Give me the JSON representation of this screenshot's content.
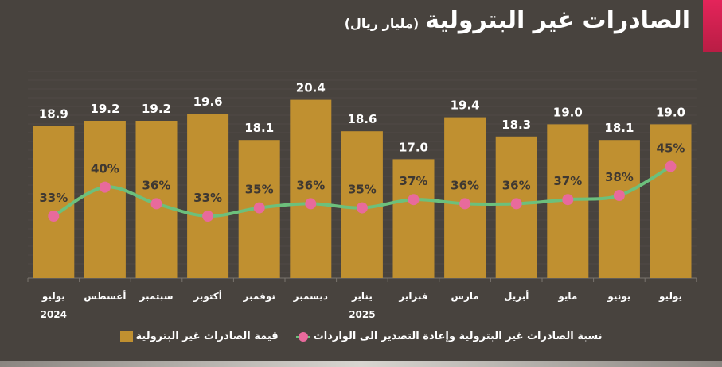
{
  "header": {
    "title": "الصادرات غير البترولية",
    "unit": "(مليار ريال)"
  },
  "colors": {
    "bar": "#c09030",
    "line": "#6cc07c",
    "marker": "#e86a9c",
    "accent": "#e4245a"
  },
  "chart_data": {
    "type": "bar+line",
    "title": "الصادرات غير البترولية (مليار ريال)",
    "categories": [
      "يوليو",
      "أغسطس",
      "سبتمبر",
      "أكتوبر",
      "نوفمبر",
      "ديسمبر",
      "يناير",
      "فبراير",
      "مارس",
      "أبريل",
      "مايو",
      "يونيو",
      "يوليو"
    ],
    "year_labels": [
      {
        "index": 0,
        "label": "2024"
      },
      {
        "index": 6,
        "label": "2025"
      }
    ],
    "series": [
      {
        "name": "قيمة الصادرات غير البترولية",
        "type": "bar",
        "values": [
          18.9,
          19.2,
          19.2,
          19.6,
          18.1,
          20.4,
          18.6,
          17.0,
          19.4,
          18.3,
          19.0,
          18.1,
          19.0
        ],
        "labels": [
          "18.9",
          "19.2",
          "19.2",
          "19.6",
          "18.1",
          "20.4",
          "18.6",
          "17.0",
          "19.4",
          "18.3",
          "19.0",
          "18.1",
          "19.0"
        ]
      },
      {
        "name": "نسبة الصادرات غير البترولية وإعادة التصدير الى الواردات",
        "type": "line",
        "values": [
          33,
          40,
          36,
          33,
          35,
          36,
          35,
          37,
          36,
          36,
          37,
          38,
          45
        ],
        "labels": [
          "33%",
          "40%",
          "36%",
          "33%",
          "35%",
          "36%",
          "35%",
          "37%",
          "36%",
          "36%",
          "37%",
          "38%",
          "45%"
        ]
      }
    ],
    "legend": [
      "نسبة الصادرات غير البترولية وإعادة التصدير الى الواردات",
      "قيمة الصادرات غير البترولية"
    ],
    "legend_position": "bottom",
    "grid": true
  }
}
